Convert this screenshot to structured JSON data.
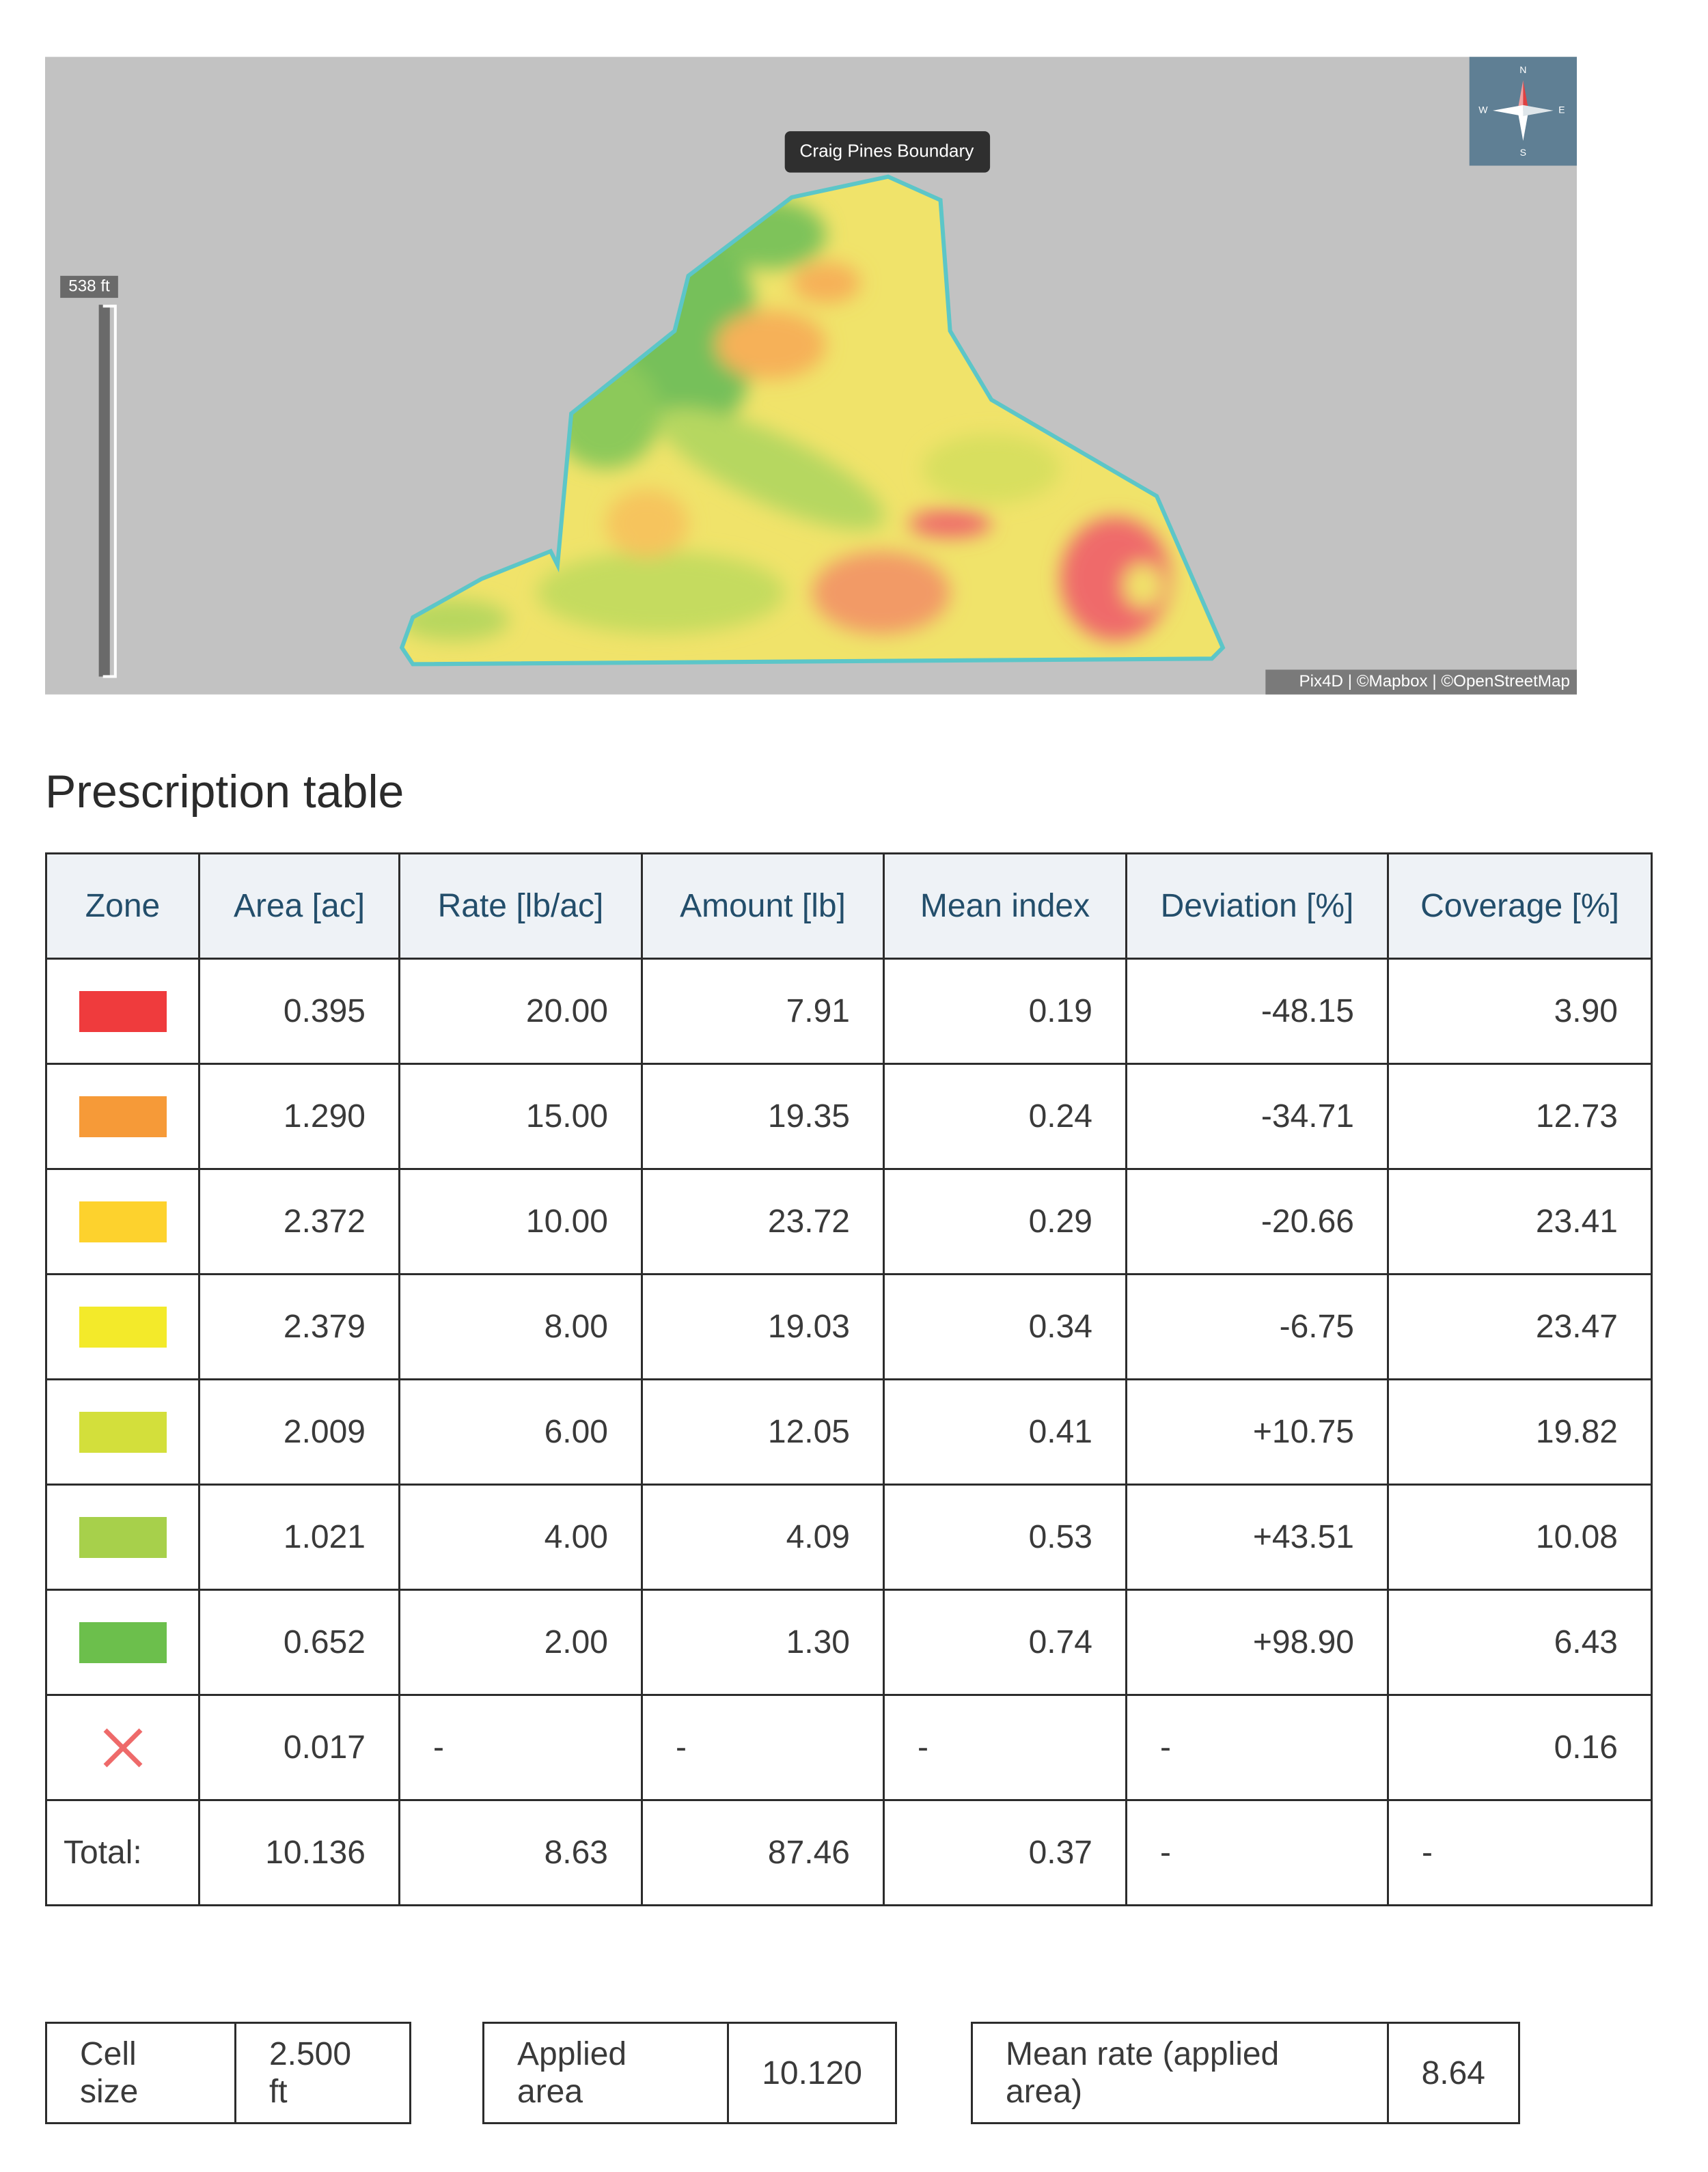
{
  "map": {
    "boundary_label": "Craig Pines Boundary",
    "scale_label": "538 ft",
    "compass": {
      "n": "N",
      "w": "W",
      "e": "E",
      "s": "S"
    },
    "attribution": "Pix4D | ©Mapbox | ©OpenStreetMap"
  },
  "title": "Prescription table",
  "table": {
    "headers": [
      "Zone",
      "Area [ac]",
      "Rate [lb/ac]",
      "Amount [lb]",
      "Mean index",
      "Deviation [%]",
      "Coverage [%]"
    ],
    "rows": [
      {
        "zone_color": "#ef3b3d",
        "cells": [
          "0.395",
          "20.00",
          "7.91",
          "0.19",
          "-48.15",
          "3.90"
        ]
      },
      {
        "zone_color": "#f69a38",
        "cells": [
          "1.290",
          "15.00",
          "19.35",
          "0.24",
          "-34.71",
          "12.73"
        ]
      },
      {
        "zone_color": "#fdd22d",
        "cells": [
          "2.372",
          "10.00",
          "23.72",
          "0.29",
          "-20.66",
          "23.41"
        ]
      },
      {
        "zone_color": "#f3ea2a",
        "cells": [
          "2.379",
          "8.00",
          "19.03",
          "0.34",
          "-6.75",
          "23.47"
        ]
      },
      {
        "zone_color": "#d3df3b",
        "cells": [
          "2.009",
          "6.00",
          "12.05",
          "0.41",
          "+10.75",
          "19.82"
        ]
      },
      {
        "zone_color": "#a7d04b",
        "cells": [
          "1.021",
          "4.00",
          "4.09",
          "0.53",
          "+43.51",
          "10.08"
        ]
      },
      {
        "zone_color": "#6cbf4c",
        "cells": [
          "0.652",
          "2.00",
          "1.30",
          "0.74",
          "+98.90",
          "6.43"
        ]
      },
      {
        "zone_color": null,
        "cells": [
          "0.017",
          "-",
          "-",
          "-",
          "-",
          "0.16"
        ]
      },
      {
        "zone": "Total:",
        "cells": [
          "10.136",
          "8.63",
          "87.46",
          "0.37",
          "-",
          "-"
        ]
      }
    ]
  },
  "summary": [
    {
      "label": "Cell size",
      "value": "2.500 ft"
    },
    {
      "label": "Applied area",
      "value": "10.120"
    },
    {
      "label": "Mean rate (applied area)",
      "value": "8.64"
    }
  ]
}
